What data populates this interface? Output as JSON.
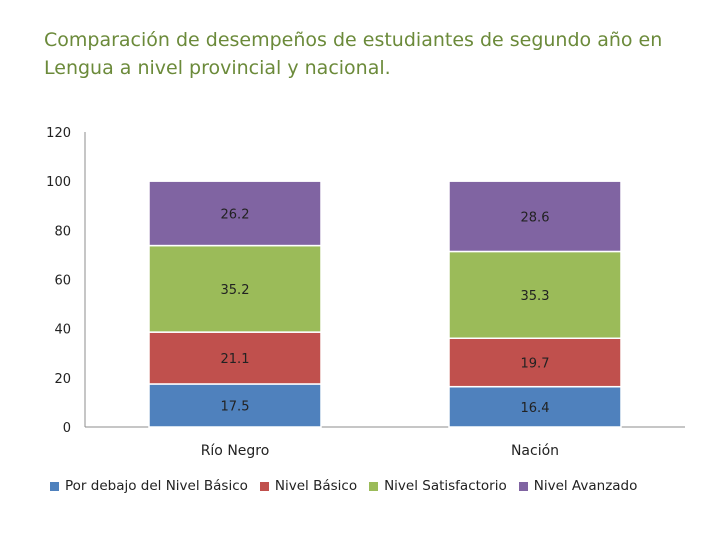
{
  "chart_data": {
    "type": "bar",
    "stacked": true,
    "title": "Comparación de desempeños de estudiantes de segundo año en Lengua a nivel provincial y nacional.",
    "categories": [
      "Río Negro",
      "Nación"
    ],
    "series": [
      {
        "name": "Por debajo del Nivel Básico",
        "values": [
          17.5,
          16.4
        ],
        "color": "#4f81bd"
      },
      {
        "name": "Nivel Básico",
        "values": [
          21.1,
          19.7
        ],
        "color": "#c0504d"
      },
      {
        "name": "Nivel Satisfactorio",
        "values": [
          35.2,
          35.3
        ],
        "color": "#9bbb59"
      },
      {
        "name": "Nivel Avanzado",
        "values": [
          26.2,
          28.6
        ],
        "color": "#8064a2"
      }
    ],
    "data_labels": [
      [
        "17.5",
        "16.4"
      ],
      [
        "21.1",
        "19.7"
      ],
      [
        "35.2",
        "35.3"
      ],
      [
        "26.2",
        "28.6"
      ]
    ],
    "ylim": [
      0,
      120
    ],
    "yticks": [
      "0",
      "20",
      "40",
      "60",
      "80",
      "100",
      "120"
    ],
    "xlabel": "",
    "ylabel": "",
    "grid": false,
    "legend_position": "bottom"
  }
}
